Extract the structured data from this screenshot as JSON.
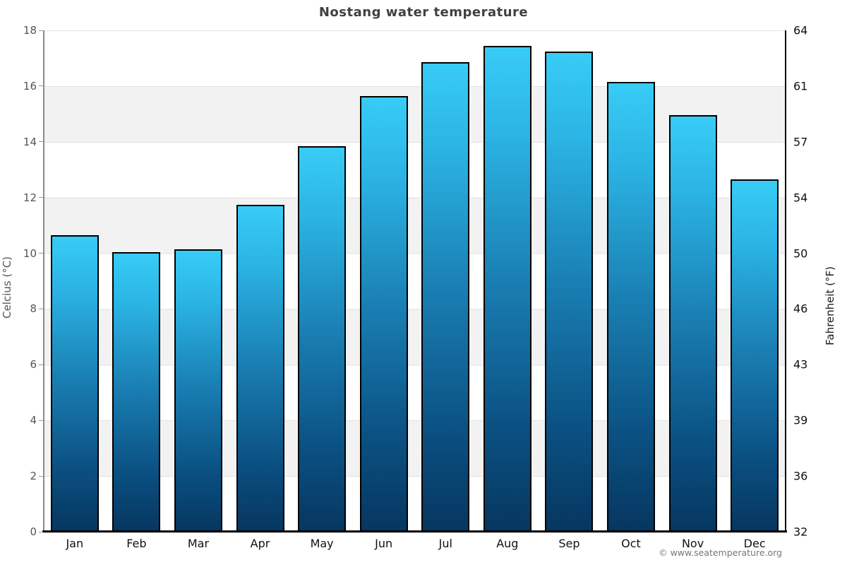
{
  "title": "Nostang water temperature",
  "watermark": "© www.seatemperature.org",
  "axes": {
    "left_label": "Celcius (°C)",
    "right_label": "Fahrenheit (°F)"
  },
  "chart_data": {
    "type": "bar",
    "title": "Nostang water temperature",
    "categories": [
      "Jan",
      "Feb",
      "Mar",
      "Apr",
      "May",
      "Jun",
      "Jul",
      "Aug",
      "Sep",
      "Oct",
      "Nov",
      "Dec"
    ],
    "values": [
      10.6,
      10.0,
      10.1,
      11.7,
      13.8,
      15.6,
      16.8,
      17.4,
      17.2,
      16.1,
      14.9,
      12.6
    ],
    "xlabel": "",
    "ylabel_left": "Celcius (°C)",
    "ylabel_right": "Fahrenheit (°F)",
    "ylim": [
      0,
      18
    ],
    "yticks_left": [
      0,
      2,
      4,
      6,
      8,
      10,
      12,
      14,
      16,
      18
    ],
    "yticks_right": [
      32,
      36,
      39,
      43,
      46,
      50,
      54,
      57,
      61,
      64
    ],
    "grid": true,
    "band_interval": 2,
    "legend": "none",
    "colors": {
      "bar_gradient_top": "#38ccf6",
      "bar_gradient_mid": "#1a7fb3",
      "bar_gradient_bottom": "#06365f",
      "bar_border": "#000000",
      "band_gray": "#f2f2f2",
      "band_white": "#ffffff",
      "gridline": "#e2e2e2",
      "title_color": "#404040",
      "left_axis_text": "#555555",
      "right_axis_text": "#111111"
    }
  }
}
